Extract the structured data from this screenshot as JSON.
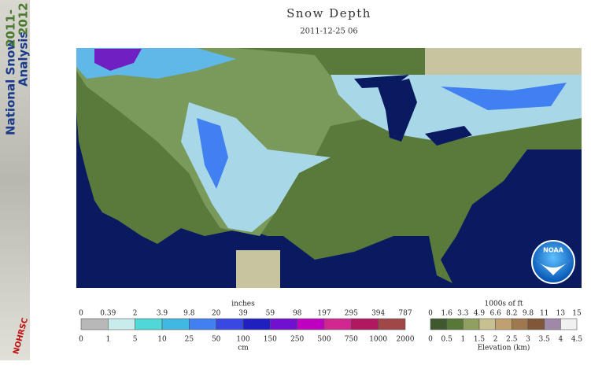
{
  "sidebar": {
    "title_line1": "National Snow",
    "title_line2": "Analysis",
    "years_line1": "2011-",
    "years_line2": "2012",
    "logo": "NOHRSC"
  },
  "header": {
    "title": "Snow Depth",
    "timestamp": "2011-12-25 06"
  },
  "map": {
    "logo": "NOAA"
  },
  "snow_legend": {
    "unit_top": "inches",
    "labels_top": [
      "0",
      "0.39",
      "2",
      "3.9",
      "9.8",
      "20",
      "39",
      "59",
      "98",
      "197",
      "295",
      "394",
      "787"
    ],
    "unit_bottom": "cm",
    "labels_bottom": [
      "0",
      "1",
      "5",
      "10",
      "25",
      "50",
      "100",
      "150",
      "250",
      "500",
      "750",
      "1000",
      "2000"
    ],
    "colors": [
      "#b8b8b8",
      "#c8ecec",
      "#50d8d8",
      "#40b8e0",
      "#4080f0",
      "#3848e0",
      "#2020c0",
      "#7010d0",
      "#c000c0",
      "#d02890",
      "#b01860",
      "#a04848"
    ]
  },
  "elevation_legend": {
    "unit_top": "1000s of ft",
    "labels_top": [
      "0",
      "1.6",
      "3.3",
      "4.9",
      "6.6",
      "8.2",
      "9.8",
      "11",
      "13",
      "15"
    ],
    "unit_bottom": "Elevation (km)",
    "labels_bottom": [
      "0",
      "0.5",
      "1",
      "1.5",
      "2",
      "2.5",
      "3",
      "3.5",
      "4",
      "4.5"
    ],
    "colors": [
      "#405830",
      "#587838",
      "#90a060",
      "#c8c090",
      "#c0a070",
      "#a07850",
      "#805838",
      "#a088a8",
      "#f0f0f0"
    ]
  }
}
